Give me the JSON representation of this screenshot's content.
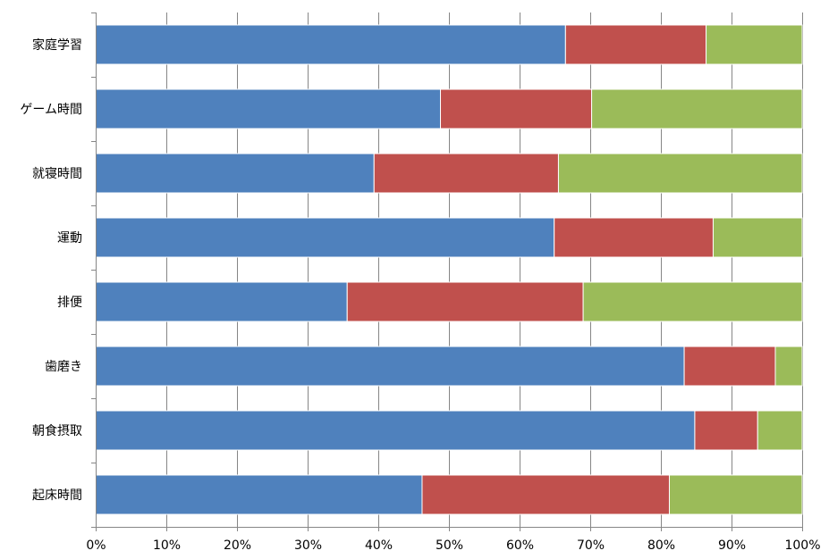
{
  "chart_data": {
    "type": "bar",
    "orientation": "horizontal",
    "stacked": true,
    "percent_stacked": true,
    "categories": [
      "家庭学習",
      "ゲーム時間",
      "就寝時間",
      "運動",
      "排便",
      "歯磨き",
      "朝食摂取",
      "起床時間"
    ],
    "series": [
      {
        "values": [
          66.5,
          48.8,
          39.4,
          64.9,
          35.6,
          83.3,
          84.8,
          46.2
        ],
        "color": "#4F81BD"
      },
      {
        "values": [
          19.9,
          21.4,
          26.1,
          22.5,
          33.4,
          12.9,
          8.9,
          35.0
        ],
        "color": "#C0504D"
      },
      {
        "values": [
          13.6,
          29.8,
          34.5,
          12.6,
          31.0,
          3.8,
          6.3,
          18.8
        ],
        "color": "#9BBB59"
      }
    ],
    "x_ticks": [
      "0%",
      "10%",
      "20%",
      "30%",
      "40%",
      "50%",
      "60%",
      "70%",
      "80%",
      "90%",
      "100%"
    ],
    "xlim": [
      0,
      100
    ],
    "grid": true,
    "legend": "none"
  }
}
